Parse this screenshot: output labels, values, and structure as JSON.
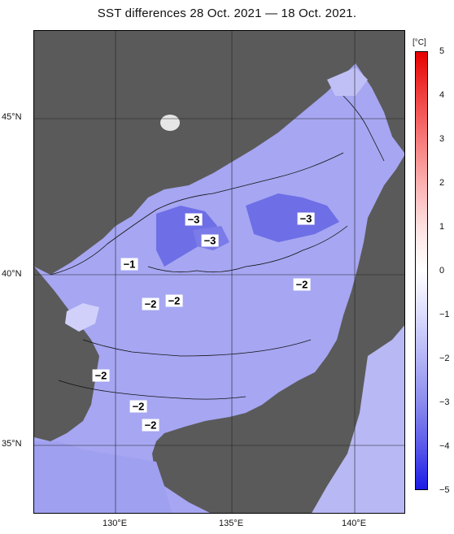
{
  "title": "SST differences 28 Oct. 2021 — 18 Oct. 2021.",
  "latitude_labels": [
    "45°N",
    "40°N",
    "35°N"
  ],
  "longitude_labels": [
    "130°E",
    "135°E",
    "140°E"
  ],
  "contour_labels": [
    "−3",
    "−3",
    "−3",
    "−1",
    "−2",
    "−2",
    "−2",
    "−2",
    "−2",
    "−2"
  ],
  "colorbar": {
    "unit": "[°C]",
    "ticks": [
      "5",
      "4",
      "3",
      "2",
      "1",
      "0",
      "−1",
      "−2",
      "−3",
      "−4",
      "−5"
    ],
    "colors": [
      "#e60000",
      "#f04040",
      "#f77a7a",
      "#fbb0b0",
      "#fde0e0",
      "#ffffff",
      "#dcdcff",
      "#b4b4f6",
      "#8c8cee",
      "#5a5aea",
      "#1a1ae6"
    ]
  },
  "colors": {
    "land": "#5a5a5a",
    "sea_background": "#a6a6f2"
  }
}
